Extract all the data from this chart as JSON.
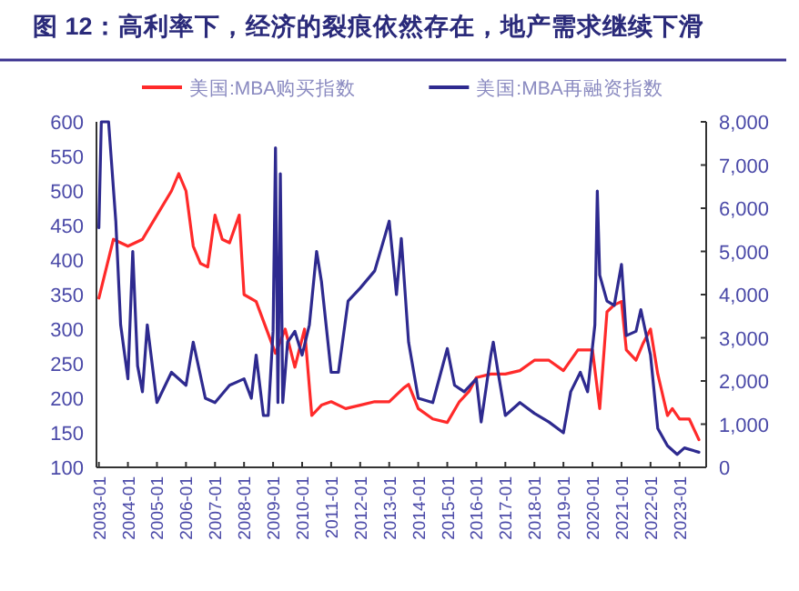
{
  "chart_data": {
    "type": "line",
    "title": "图 12：高利率下，经济的裂痕依然存在，地产需求继续下滑",
    "xlim": [
      "2002-12",
      "2023-12"
    ],
    "xticks": [
      "2003-01",
      "2004-01",
      "2005-01",
      "2006-01",
      "2007-01",
      "2008-01",
      "2009-01",
      "2010-01",
      "2011-01",
      "2012-01",
      "2013-01",
      "2014-01",
      "2015-01",
      "2016-01",
      "2017-01",
      "2018-01",
      "2019-01",
      "2020-01",
      "2021-01",
      "2022-01",
      "2023-01"
    ],
    "ylim": [
      100,
      600
    ],
    "yticks": [
      100,
      150,
      200,
      250,
      300,
      350,
      400,
      450,
      500,
      550,
      600
    ],
    "y2lim": [
      0,
      8000
    ],
    "y2ticks": [
      {
        "value": 0,
        "label": "0"
      },
      {
        "value": 1000,
        "label": "1,000"
      },
      {
        "value": 2000,
        "label": "2,000"
      },
      {
        "value": 3000,
        "label": "3,000"
      },
      {
        "value": 4000,
        "label": "4,000"
      },
      {
        "value": 5000,
        "label": "5,000"
      },
      {
        "value": 6000,
        "label": "6,000"
      },
      {
        "value": 7000,
        "label": "7,000"
      },
      {
        "value": 8000,
        "label": "8,000"
      }
    ],
    "grid": false,
    "legend": "top",
    "line_style": "solid",
    "series": [
      {
        "name": "美国:MBA购买指数",
        "color": "#ff2a2a",
        "axis": "y",
        "x": [
          "2003-01",
          "2003-07",
          "2004-01",
          "2004-07",
          "2005-01",
          "2005-07",
          "2005-10",
          "2006-01",
          "2006-04",
          "2006-07",
          "2006-10",
          "2007-01",
          "2007-04",
          "2007-07",
          "2007-11",
          "2008-01",
          "2008-06",
          "2009-02",
          "2009-06",
          "2009-10",
          "2010-02",
          "2010-05",
          "2010-09",
          "2011-01",
          "2011-07",
          "2012-01",
          "2012-07",
          "2013-01",
          "2013-07",
          "2013-09",
          "2014-01",
          "2014-07",
          "2015-01",
          "2015-06",
          "2015-10",
          "2016-01",
          "2016-07",
          "2017-01",
          "2017-07",
          "2018-01",
          "2018-07",
          "2019-01",
          "2019-07",
          "2020-01",
          "2020-04",
          "2020-07",
          "2020-10",
          "2021-01",
          "2021-03",
          "2021-07",
          "2021-10",
          "2022-01",
          "2022-04",
          "2022-08",
          "2022-10",
          "2023-01",
          "2023-05",
          "2023-09"
        ],
        "values": [
          345,
          430,
          420,
          430,
          465,
          500,
          525,
          500,
          420,
          395,
          390,
          465,
          430,
          425,
          465,
          350,
          340,
          265,
          300,
          245,
          300,
          175,
          190,
          195,
          185,
          190,
          195,
          195,
          215,
          220,
          185,
          170,
          165,
          195,
          210,
          230,
          235,
          235,
          240,
          255,
          255,
          240,
          270,
          270,
          185,
          325,
          335,
          340,
          270,
          255,
          280,
          300,
          235,
          175,
          185,
          170,
          170,
          140
        ]
      },
      {
        "name": "美国:MBA再融资指数",
        "color": "#2e2a8f",
        "axis": "y2",
        "x": [
          "2003-01",
          "2003-02",
          "2003-05",
          "2003-08",
          "2003-10",
          "2004-01",
          "2004-03",
          "2004-05",
          "2004-07",
          "2004-09",
          "2005-01",
          "2005-07",
          "2006-01",
          "2006-04",
          "2006-09",
          "2007-01",
          "2007-07",
          "2008-01",
          "2008-04",
          "2008-06",
          "2008-09",
          "2008-11",
          "2009-01",
          "2009-02",
          "2009-03",
          "2009-04",
          "2009-05",
          "2009-07",
          "2009-10",
          "2010-01",
          "2010-04",
          "2010-07",
          "2010-09",
          "2011-01",
          "2011-04",
          "2011-08",
          "2012-01",
          "2012-07",
          "2013-01",
          "2013-04",
          "2013-06",
          "2013-09",
          "2014-01",
          "2014-07",
          "2015-01",
          "2015-04",
          "2015-08",
          "2016-01",
          "2016-03",
          "2016-07",
          "2016-08",
          "2016-10",
          "2017-01",
          "2017-07",
          "2018-01",
          "2018-07",
          "2019-01",
          "2019-04",
          "2019-08",
          "2019-11",
          "2020-02",
          "2020-03",
          "2020-04",
          "2020-07",
          "2020-10",
          "2021-01",
          "2021-03",
          "2021-07",
          "2021-09",
          "2022-01",
          "2022-04",
          "2022-08",
          "2022-12",
          "2023-03",
          "2023-09"
        ],
        "values": [
          5550,
          8000,
          8000,
          5700,
          3300,
          2050,
          5000,
          2350,
          1750,
          3300,
          1500,
          2200,
          1900,
          2900,
          1600,
          1500,
          1900,
          2050,
          1600,
          2600,
          1200,
          1200,
          3150,
          7400,
          1500,
          6800,
          1500,
          2900,
          3150,
          2600,
          3300,
          5000,
          4300,
          2200,
          2200,
          3850,
          4150,
          4550,
          5700,
          4000,
          5300,
          2900,
          1600,
          1500,
          2750,
          1900,
          1750,
          2050,
          1050,
          2600,
          2900,
          2200,
          1200,
          1500,
          1250,
          1050,
          800,
          1750,
          2200,
          1750,
          3300,
          6400,
          4450,
          3850,
          3750,
          4700,
          3050,
          3150,
          3650,
          2600,
          900,
          500,
          300,
          450,
          350
        ]
      }
    ]
  }
}
